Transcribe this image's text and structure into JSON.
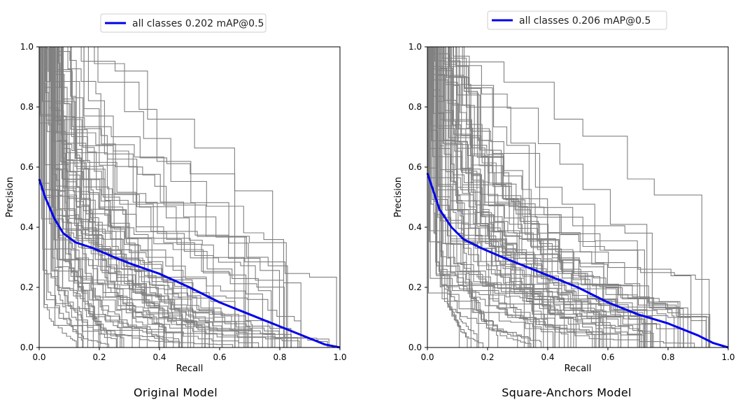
{
  "colors": {
    "mean_curve": "#0000ee",
    "class_curve": "#808080",
    "legend_border": "#cccccc"
  },
  "chart_data": [
    {
      "type": "line",
      "caption": "Original Model",
      "xlabel": "Recall",
      "ylabel": "Precision",
      "xlim": [
        0,
        1
      ],
      "ylim": [
        0,
        1
      ],
      "x_ticks": [
        "0.0",
        "0.2",
        "0.4",
        "0.6",
        "0.8",
        "1.0"
      ],
      "y_ticks": [
        "0.0",
        "0.2",
        "0.4",
        "0.6",
        "0.8",
        "1.0"
      ],
      "grid": false,
      "legend": {
        "position": "top-center",
        "entries": [
          "all classes 0.202 mAP@0.5"
        ]
      },
      "series": [
        {
          "name": "all classes 0.202 mAP@0.5",
          "x": [
            0.0,
            0.02,
            0.05,
            0.08,
            0.12,
            0.18,
            0.25,
            0.3,
            0.4,
            0.5,
            0.6,
            0.7,
            0.8,
            0.9,
            0.95,
            1.0
          ],
          "y": [
            0.56,
            0.5,
            0.43,
            0.38,
            0.35,
            0.33,
            0.3,
            0.28,
            0.245,
            0.2,
            0.15,
            0.11,
            0.07,
            0.03,
            0.01,
            0.0
          ]
        }
      ]
    },
    {
      "type": "line",
      "caption": "Square-Anchors Model",
      "xlabel": "Recall",
      "ylabel": "Precision",
      "xlim": [
        0,
        1
      ],
      "ylim": [
        0,
        1
      ],
      "x_ticks": [
        "0.0",
        "0.2",
        "0.4",
        "0.6",
        "0.8",
        "1.0"
      ],
      "y_ticks": [
        "0.0",
        "0.2",
        "0.4",
        "0.6",
        "0.8",
        "1.0"
      ],
      "grid": false,
      "legend": {
        "position": "top-center",
        "entries": [
          "all classes 0.206 mAP@0.5"
        ]
      },
      "series": [
        {
          "name": "all classes 0.206 mAP@0.5",
          "x": [
            0.0,
            0.02,
            0.04,
            0.08,
            0.12,
            0.18,
            0.25,
            0.3,
            0.4,
            0.5,
            0.6,
            0.7,
            0.8,
            0.9,
            0.95,
            1.0
          ],
          "y": [
            0.58,
            0.52,
            0.46,
            0.4,
            0.36,
            0.33,
            0.3,
            0.28,
            0.24,
            0.2,
            0.15,
            0.11,
            0.08,
            0.04,
            0.015,
            0.0
          ]
        }
      ]
    }
  ]
}
